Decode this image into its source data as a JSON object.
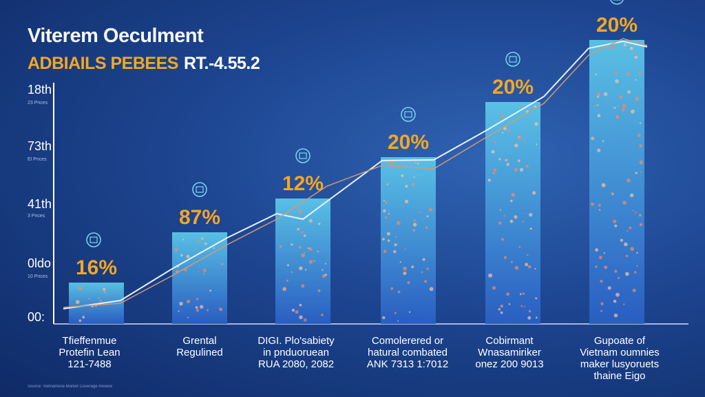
{
  "header": {
    "title": "Viterem Oeculment",
    "subtitle": "ADBIAILS PEBEES",
    "subtitle_version": "RT.-4.55.2"
  },
  "y_axis": {
    "labels": [
      "18th",
      "73th",
      "41th",
      "0ldo",
      "00:"
    ],
    "sublabels": [
      "23 Prices",
      "El Prices",
      "3 Prices",
      "10 Prices"
    ]
  },
  "chart_data": {
    "type": "bar",
    "title": "Viterem Oeculment",
    "subtitle": "ADBIAILS PEBEES RT.-4.55.2",
    "categories": [
      "Tfieffenmue Protefin Lean 121-7488",
      "Grental Regulined",
      "DIGI. Plo'sabiety in pnduoruean RUA 2080, 2082",
      "Comolerered or hatural combated ANK 7313 1:7012",
      "Cobirmant Wnasamiriker onez 200 9013",
      "Gupoate of Vietnam oumnies maker lusyoruets thaine Eigo"
    ],
    "values": [
      16,
      87,
      12,
      20,
      20,
      20
    ],
    "value_labels": [
      "16%",
      "87%",
      "12%",
      "20%",
      "20%",
      "20%"
    ],
    "colors": {
      "bar_top": "#4cb7e0",
      "bar_bottom": "#2a64c8",
      "value_label": "#f5a623",
      "line": "#e7eefc",
      "line2": "#d29a74"
    }
  },
  "categories_display": [
    [
      "Tfieffenmue",
      "Protefin Lean",
      "121-7488"
    ],
    [
      "Grental",
      "Regulined"
    ],
    [
      "DIGI. Plo'sabiety",
      "in pnduoruean",
      "RUA 2080, 2082"
    ],
    [
      "Comolerered or",
      "hatural combated",
      "ANK 7313 1:7012"
    ],
    [
      "Cobirmant",
      "Wnasamiriker",
      "onez 200 9013"
    ],
    [
      "Gupoate of",
      "Vietnam oumnies",
      "maker lusyoruets",
      "thaine Eigo"
    ]
  ],
  "footnote": "Source: Vietnamese Market Coverage Review"
}
